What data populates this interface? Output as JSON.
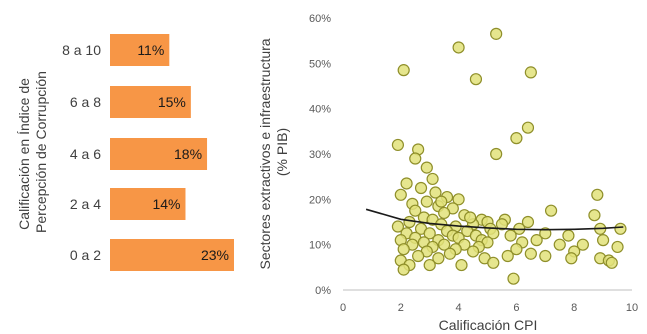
{
  "colors": {
    "bar": "#f79646",
    "point_fill": "#e2e27a",
    "point_stroke": "#8f8f2a",
    "trend": "#1a1a1a",
    "axis": "#bfbfbf",
    "text": "#404040"
  },
  "chart_data": [
    {
      "type": "bar",
      "orientation": "horizontal",
      "title": "",
      "ylabel": "Calificación en Índice de Percepción de Corrupción",
      "ylabel_lines": [
        "Calificación en Índice de",
        "Percepción de Corrupción"
      ],
      "categories": [
        "8 a 10",
        "6 a 8",
        "4 a 6",
        "2 a 4",
        "0 a 2"
      ],
      "values": [
        11,
        15,
        18,
        14,
        23
      ],
      "labels": [
        "11%",
        "15%",
        "18%",
        "14%",
        "23%"
      ],
      "xlim": [
        0,
        23
      ]
    },
    {
      "type": "scatter",
      "title": "",
      "xlabel": "Calificación CPI",
      "ylabel": "Sectores extractivos e infraestructura (% PIB)",
      "ylabel_lines": [
        "Sectores extractivos e infraestructura",
        "(% PIB)"
      ],
      "xlim": [
        0,
        10
      ],
      "ylim": [
        0,
        60
      ],
      "xticks": [
        "0",
        "2",
        "4",
        "6",
        "8",
        "10"
      ],
      "yticks": [
        "0%",
        "10%",
        "20%",
        "30%",
        "40%",
        "50%",
        "60%"
      ],
      "trendline": {
        "x": [
          0.8,
          2,
          3,
          4,
          5,
          6,
          7,
          8,
          9,
          9.7
        ],
        "y": [
          17.8,
          15.6,
          14.7,
          14.1,
          13.7,
          13.4,
          13.3,
          13.4,
          13.6,
          13.9
        ]
      },
      "points": [
        [
          2.1,
          48.5
        ],
        [
          4.0,
          53.5
        ],
        [
          4.6,
          46.5
        ],
        [
          5.3,
          56.5
        ],
        [
          6.5,
          48.0
        ],
        [
          1.9,
          32.0
        ],
        [
          2.6,
          31.0
        ],
        [
          5.3,
          30.0
        ],
        [
          6.0,
          33.5
        ],
        [
          6.4,
          35.8
        ],
        [
          2.5,
          29.0
        ],
        [
          2.9,
          27.0
        ],
        [
          3.1,
          24.5
        ],
        [
          2.2,
          23.5
        ],
        [
          2.7,
          22.5
        ],
        [
          3.2,
          21.5
        ],
        [
          2.0,
          21.0
        ],
        [
          3.6,
          20.5
        ],
        [
          4.0,
          20.0
        ],
        [
          2.9,
          19.5
        ],
        [
          2.4,
          19.0
        ],
        [
          3.3,
          18.5
        ],
        [
          3.8,
          18.0
        ],
        [
          2.5,
          17.5
        ],
        [
          3.5,
          17.0
        ],
        [
          4.2,
          16.5
        ],
        [
          2.8,
          16.0
        ],
        [
          3.1,
          15.5
        ],
        [
          4.8,
          15.5
        ],
        [
          5.0,
          15.0
        ],
        [
          2.3,
          15.0
        ],
        [
          3.4,
          14.5
        ],
        [
          3.9,
          14.0
        ],
        [
          4.5,
          14.5
        ],
        [
          1.9,
          14.0
        ],
        [
          2.7,
          13.5
        ],
        [
          3.6,
          13.0
        ],
        [
          4.3,
          13.0
        ],
        [
          5.1,
          13.5
        ],
        [
          2.2,
          12.5
        ],
        [
          3.0,
          12.5
        ],
        [
          3.8,
          12.0
        ],
        [
          4.6,
          12.0
        ],
        [
          5.2,
          12.5
        ],
        [
          2.5,
          11.5
        ],
        [
          3.3,
          11.0
        ],
        [
          4.0,
          11.5
        ],
        [
          4.8,
          11.0
        ],
        [
          2.0,
          11.0
        ],
        [
          2.8,
          10.5
        ],
        [
          3.5,
          10.0
        ],
        [
          4.2,
          10.0
        ],
        [
          5.0,
          10.5
        ],
        [
          2.4,
          10.0
        ],
        [
          3.1,
          9.5
        ],
        [
          3.9,
          9.0
        ],
        [
          4.7,
          9.5
        ],
        [
          2.1,
          9.0
        ],
        [
          2.9,
          8.5
        ],
        [
          3.7,
          8.0
        ],
        [
          4.5,
          8.5
        ],
        [
          2.6,
          7.5
        ],
        [
          3.3,
          7.0
        ],
        [
          4.9,
          7.0
        ],
        [
          2.0,
          6.5
        ],
        [
          2.3,
          5.5
        ],
        [
          3.0,
          5.5
        ],
        [
          4.1,
          5.5
        ],
        [
          5.2,
          6.0
        ],
        [
          2.1,
          4.5
        ],
        [
          5.9,
          2.5
        ],
        [
          5.6,
          15.5
        ],
        [
          5.5,
          14.5
        ],
        [
          6.1,
          13.5
        ],
        [
          6.4,
          15.0
        ],
        [
          5.8,
          12.0
        ],
        [
          6.2,
          10.5
        ],
        [
          6.7,
          11.0
        ],
        [
          6.0,
          9.0
        ],
        [
          6.5,
          8.0
        ],
        [
          7.0,
          12.5
        ],
        [
          7.2,
          17.5
        ],
        [
          7.5,
          10.0
        ],
        [
          7.8,
          12.0
        ],
        [
          8.0,
          8.5
        ],
        [
          7.9,
          7.0
        ],
        [
          8.3,
          10.0
        ],
        [
          8.7,
          16.5
        ],
        [
          8.8,
          21.0
        ],
        [
          8.9,
          13.5
        ],
        [
          9.0,
          11.0
        ],
        [
          8.9,
          7.0
        ],
        [
          9.2,
          6.5
        ],
        [
          9.6,
          13.5
        ],
        [
          9.5,
          9.5
        ],
        [
          9.3,
          6.0
        ],
        [
          7.0,
          7.5
        ],
        [
          5.7,
          7.5
        ],
        [
          4.4,
          16.0
        ],
        [
          3.4,
          19.5
        ]
      ]
    }
  ]
}
